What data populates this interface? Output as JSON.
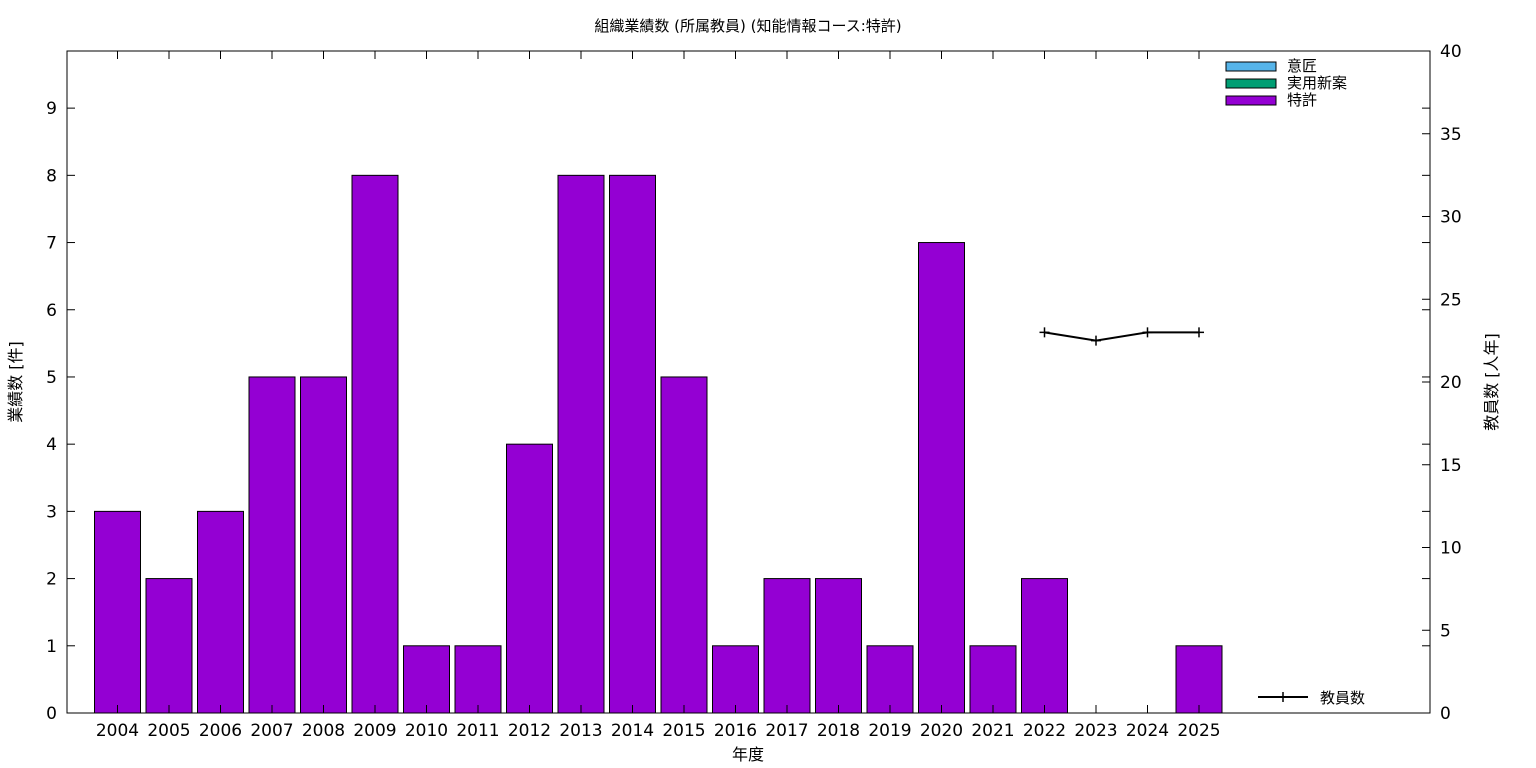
{
  "chart_data": {
    "type": "bar",
    "title": "組織業績数 (所属教員) (知能情報コース:特許)",
    "xlabel": "年度",
    "ylabel": "業績数 [件]",
    "y2label": "教員数 [人年]",
    "categories": [
      "2004",
      "2005",
      "2006",
      "2007",
      "2008",
      "2009",
      "2010",
      "2011",
      "2012",
      "2013",
      "2014",
      "2015",
      "2016",
      "2017",
      "2018",
      "2019",
      "2020",
      "2021",
      "2022",
      "2023",
      "2024",
      "2025"
    ],
    "ylim": [
      0,
      9.85
    ],
    "yticks": [
      0,
      1,
      2,
      3,
      4,
      5,
      6,
      7,
      8,
      9
    ],
    "y2lim": [
      0,
      40
    ],
    "y2ticks": [
      0,
      5,
      10,
      15,
      20,
      25,
      30,
      35,
      40
    ],
    "grid": false,
    "legend_position": "top-right",
    "series": [
      {
        "name": "意匠",
        "color": "#56b4e9",
        "values": [
          0,
          0,
          0,
          0,
          0,
          0,
          0,
          0,
          0,
          0,
          0,
          0,
          0,
          0,
          0,
          0,
          0,
          0,
          0,
          0,
          0,
          0
        ]
      },
      {
        "name": "実用新案",
        "color": "#009e73",
        "values": [
          0,
          0,
          0,
          0,
          0,
          0,
          0,
          0,
          0,
          0,
          0,
          0,
          0,
          0,
          0,
          0,
          0,
          0,
          0,
          0,
          0,
          0
        ]
      },
      {
        "name": "特許",
        "color": "#9400d3",
        "values": [
          3,
          2,
          3,
          5,
          5,
          8,
          1,
          1,
          4,
          8,
          8,
          5,
          1,
          2,
          2,
          1,
          7,
          1,
          2,
          0,
          0,
          1
        ]
      }
    ],
    "line_series": {
      "name": "教員数",
      "color": "#000000",
      "axis": "y2",
      "points": [
        {
          "x": "2022",
          "y": 23
        },
        {
          "x": "2023",
          "y": 22.5
        },
        {
          "x": "2024",
          "y": 23
        },
        {
          "x": "2025",
          "y": 23
        }
      ]
    }
  }
}
